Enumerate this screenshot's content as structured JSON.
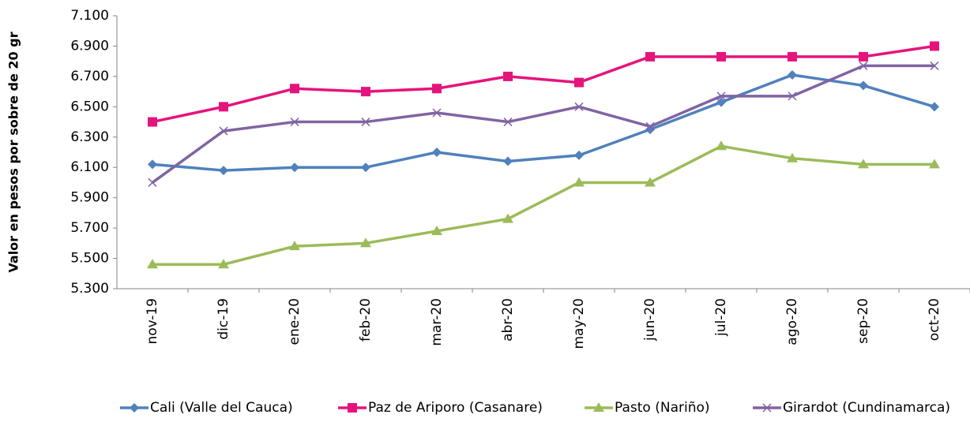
{
  "chart_data": {
    "type": "line",
    "y_label": "Valor en pesos por sobre de 20 gr",
    "categories": [
      "nov-19",
      "dic-19",
      "ene-20",
      "feb-20",
      "mar-20",
      "abr-20",
      "may-20",
      "jun-20",
      "jul-20",
      "ago-20",
      "sep-20",
      "oct-20"
    ],
    "series": [
      {
        "name": "Cali (Valle del Cauca)",
        "color": "#4f81bd",
        "marker": "diamond",
        "values": [
          6120,
          6080,
          6100,
          6100,
          6200,
          6140,
          6180,
          6350,
          6530,
          6710,
          6640,
          6500
        ]
      },
      {
        "name": "Paz de Ariporo (Casanare)",
        "color": "#e5147c",
        "marker": "square",
        "values": [
          6400,
          6500,
          6620,
          6600,
          6620,
          6700,
          6660,
          6830,
          6830,
          6830,
          6830,
          6900
        ]
      },
      {
        "name": "Pasto (Nariño)",
        "color": "#9bbb59",
        "marker": "triangle",
        "values": [
          5460,
          5460,
          5580,
          5600,
          5680,
          5760,
          6000,
          6000,
          6240,
          6160,
          6120,
          6120
        ]
      },
      {
        "name": "Girardot (Cundinamarca)",
        "color": "#8064a2",
        "marker": "x",
        "values": [
          6000,
          6340,
          6400,
          6400,
          6460,
          6400,
          6500,
          6370,
          6570,
          6570,
          6770,
          6770
        ]
      }
    ],
    "ylim": [
      5300,
      7100
    ],
    "yticks": [
      {
        "value": 5300,
        "label": "5.300"
      },
      {
        "value": 5500,
        "label": "5.500"
      },
      {
        "value": 5700,
        "label": "5.700"
      },
      {
        "value": 5900,
        "label": "5.900"
      },
      {
        "value": 6100,
        "label": "6.100"
      },
      {
        "value": 6300,
        "label": "6.300"
      },
      {
        "value": 6500,
        "label": "6.500"
      },
      {
        "value": 6700,
        "label": "6.700"
      },
      {
        "value": 6900,
        "label": "6.900"
      },
      {
        "value": 7100,
        "label": "7.100"
      }
    ],
    "grid": false,
    "legend": "bottom"
  }
}
